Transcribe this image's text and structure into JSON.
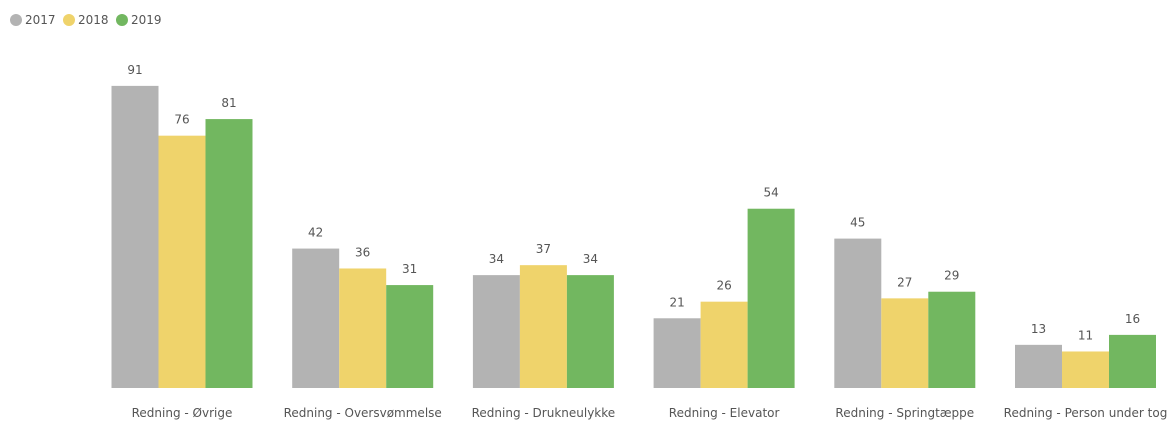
{
  "chart_data": {
    "type": "bar",
    "categories": [
      "Redning - Øvrige",
      "Redning - Oversvømmelse",
      "Redning - Drukneulykke",
      "Redning - Elevator",
      "Redning - Springtæppe",
      "Redning - Person under tog"
    ],
    "series": [
      {
        "name": "2017",
        "color": "#b3b3b3",
        "values": [
          91,
          42,
          34,
          21,
          45,
          13
        ]
      },
      {
        "name": "2018",
        "color": "#efd36b",
        "values": [
          76,
          36,
          37,
          26,
          27,
          11
        ]
      },
      {
        "name": "2019",
        "color": "#72b760",
        "values": [
          81,
          31,
          34,
          54,
          29,
          16
        ]
      }
    ],
    "legend": "top-left"
  }
}
